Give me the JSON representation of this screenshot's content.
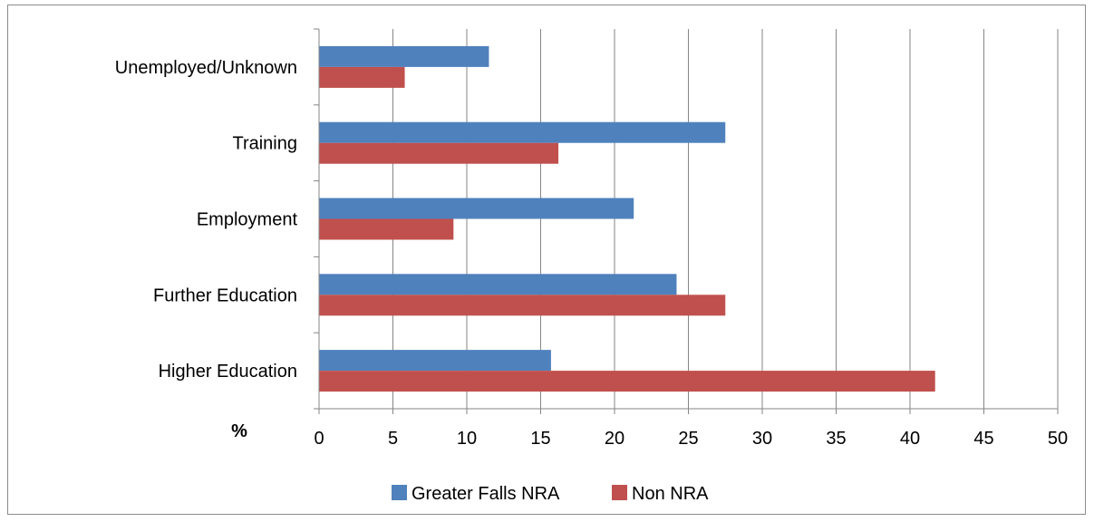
{
  "chart_data": {
    "type": "bar",
    "orientation": "horizontal",
    "categories": [
      "Unemployed/Unknown",
      "Training",
      "Employment",
      "Further Education",
      "Higher Education"
    ],
    "series": [
      {
        "name": "Greater Falls NRA",
        "color": "#4f81bd",
        "values": [
          11.5,
          27.5,
          21.3,
          24.2,
          15.7
        ]
      },
      {
        "name": "Non NRA",
        "color": "#c0504d",
        "values": [
          5.8,
          16.2,
          9.1,
          27.5,
          41.7
        ]
      }
    ],
    "xlim": [
      0,
      50
    ],
    "xticks": [
      0,
      5,
      10,
      15,
      20,
      25,
      30,
      35,
      40,
      45,
      50
    ],
    "xunit": "%",
    "grid": true,
    "legend_position": "bottom"
  }
}
